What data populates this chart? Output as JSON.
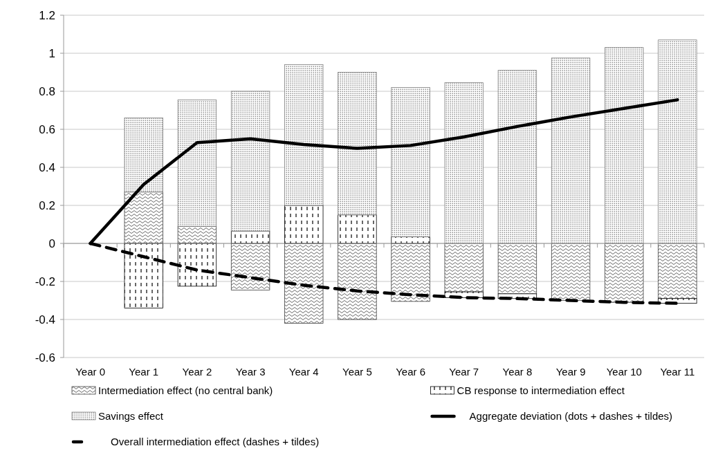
{
  "chart_data": {
    "type": "bar",
    "stacked": true,
    "categories": [
      "Year 0",
      "Year 1",
      "Year 2",
      "Year 3",
      "Year 4",
      "Year 5",
      "Year 6",
      "Year 7",
      "Year 8",
      "Year 9",
      "Year 10",
      "Year 11"
    ],
    "series": [
      {
        "name": "Intermediation effect (no central bank)",
        "color": "#404040",
        "values": [
          null,
          0.27,
          0.09,
          -0.245,
          -0.42,
          -0.4,
          -0.305,
          -0.255,
          -0.265,
          -0.3,
          -0.31,
          -0.29
        ]
      },
      {
        "name": "CB response to intermediation effect",
        "color": "#000000",
        "values": [
          null,
          -0.34,
          -0.225,
          0.065,
          0.2,
          0.15,
          0.035,
          -0.03,
          -0.025,
          0,
          0,
          -0.025
        ]
      },
      {
        "name": "Savings effect",
        "color": "#808080",
        "values": [
          null,
          0.39,
          0.665,
          0.735,
          0.74,
          0.75,
          0.785,
          0.845,
          0.91,
          0.975,
          1.03,
          1.07
        ]
      },
      {
        "name": "Aggregate deviation (dots + dashes + tildes)",
        "type": "line",
        "color": "#000000",
        "line_style": "solid",
        "values": [
          0,
          0.31,
          0.53,
          0.55,
          0.52,
          0.5,
          0.515,
          0.56,
          0.615,
          0.665,
          0.71,
          0.755
        ]
      },
      {
        "name": "Overall intermediation effect (dashes + tildes)",
        "type": "line",
        "color": "#000000",
        "line_style": "dashed",
        "values": [
          0,
          -0.07,
          -0.14,
          -0.18,
          -0.22,
          -0.25,
          -0.27,
          -0.285,
          -0.29,
          -0.3,
          -0.31,
          -0.315
        ]
      }
    ],
    "ylim": [
      -0.6,
      1.2
    ],
    "yticks": [
      -0.6,
      -0.4,
      -0.2,
      0,
      0.2,
      0.4,
      0.6,
      0.8,
      1,
      1.2
    ],
    "grid": "y",
    "legend": "bottom",
    "marker": "none"
  }
}
